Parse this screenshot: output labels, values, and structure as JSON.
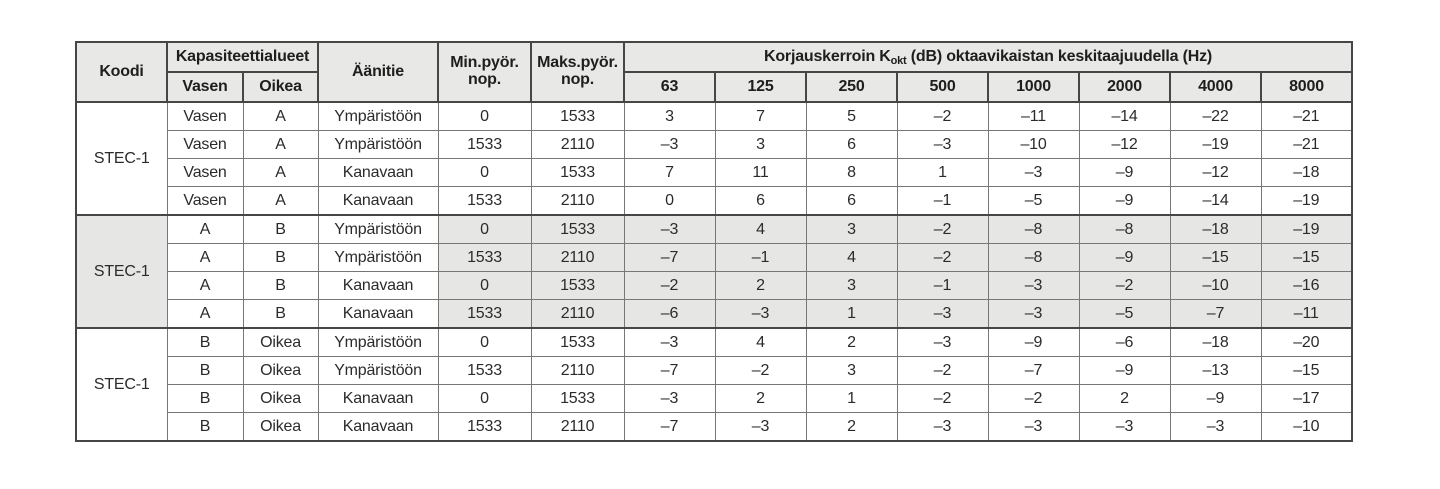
{
  "table": {
    "header": {
      "koodi": "Koodi",
      "kapasiteettialueet": "Kapasiteettialueet",
      "vasen": "Vasen",
      "oikea": "Oikea",
      "aanitie": "Äänitie",
      "min_pyor_nop": "Min.pyör. nop.",
      "maks_pyor_nop": "Maks.pyör. nop.",
      "korjauskerroin_prefix": "Korjauskerroin K",
      "korjauskerroin_sub": "okt",
      "korjauskerroin_suffix": " (dB) oktaavikaistan keskitaajuudella (Hz)",
      "frequencies": [
        "63",
        "125",
        "250",
        "500",
        "1000",
        "2000",
        "4000",
        "8000"
      ]
    },
    "groups": [
      {
        "koodi": "STEC-1",
        "shaded": false,
        "rows": [
          {
            "vasen": "Vasen",
            "oikea": "A",
            "aanitie": "Ympäristöön",
            "min": "0",
            "maks": "1533",
            "k": [
              "3",
              "7",
              "5",
              "–2",
              "–11",
              "–14",
              "–22",
              "–21"
            ]
          },
          {
            "vasen": "Vasen",
            "oikea": "A",
            "aanitie": "Ympäristöön",
            "min": "1533",
            "maks": "2110",
            "k": [
              "–3",
              "3",
              "6",
              "–3",
              "–10",
              "–12",
              "–19",
              "–21"
            ]
          },
          {
            "vasen": "Vasen",
            "oikea": "A",
            "aanitie": "Kanavaan",
            "min": "0",
            "maks": "1533",
            "k": [
              "7",
              "11",
              "8",
              "1",
              "–3",
              "–9",
              "–12",
              "–18"
            ]
          },
          {
            "vasen": "Vasen",
            "oikea": "A",
            "aanitie": "Kanavaan",
            "min": "1533",
            "maks": "2110",
            "k": [
              "0",
              "6",
              "6",
              "–1",
              "–5",
              "–9",
              "–14",
              "–19"
            ]
          }
        ]
      },
      {
        "koodi": "STEC-1",
        "shaded": true,
        "rows": [
          {
            "vasen": "A",
            "oikea": "B",
            "aanitie": "Ympäristöön",
            "min": "0",
            "maks": "1533",
            "k": [
              "–3",
              "4",
              "3",
              "–2",
              "–8",
              "–8",
              "–18",
              "–19"
            ]
          },
          {
            "vasen": "A",
            "oikea": "B",
            "aanitie": "Ympäristöön",
            "min": "1533",
            "maks": "2110",
            "k": [
              "–7",
              "–1",
              "4",
              "–2",
              "–8",
              "–9",
              "–15",
              "–15"
            ]
          },
          {
            "vasen": "A",
            "oikea": "B",
            "aanitie": "Kanavaan",
            "min": "0",
            "maks": "1533",
            "k": [
              "–2",
              "2",
              "3",
              "–1",
              "–3",
              "–2",
              "–10",
              "–16"
            ]
          },
          {
            "vasen": "A",
            "oikea": "B",
            "aanitie": "Kanavaan",
            "min": "1533",
            "maks": "2110",
            "k": [
              "–6",
              "–3",
              "1",
              "–3",
              "–3",
              "–5",
              "–7",
              "–11"
            ]
          }
        ]
      },
      {
        "koodi": "STEC-1",
        "shaded": false,
        "rows": [
          {
            "vasen": "B",
            "oikea": "Oikea",
            "aanitie": "Ympäristöön",
            "min": "0",
            "maks": "1533",
            "k": [
              "–3",
              "4",
              "2",
              "–3",
              "–9",
              "–6",
              "–18",
              "–20"
            ]
          },
          {
            "vasen": "B",
            "oikea": "Oikea",
            "aanitie": "Ympäristöön",
            "min": "1533",
            "maks": "2110",
            "k": [
              "–7",
              "–2",
              "3",
              "–2",
              "–7",
              "–9",
              "–13",
              "–15"
            ]
          },
          {
            "vasen": "B",
            "oikea": "Oikea",
            "aanitie": "Kanavaan",
            "min": "0",
            "maks": "1533",
            "k": [
              "–3",
              "2",
              "1",
              "–2",
              "–2",
              "2",
              "–9",
              "–17"
            ]
          },
          {
            "vasen": "B",
            "oikea": "Oikea",
            "aanitie": "Kanavaan",
            "min": "1533",
            "maks": "2110",
            "k": [
              "–7",
              "–3",
              "2",
              "–3",
              "–3",
              "–3",
              "–3",
              "–10"
            ]
          }
        ]
      }
    ]
  },
  "colors": {
    "header_background": "#e8e8e7",
    "shaded_cell_background": "#e6e6e4",
    "thick_border": "#464646",
    "thin_border": "#767676",
    "text": "#2b2b2b"
  }
}
